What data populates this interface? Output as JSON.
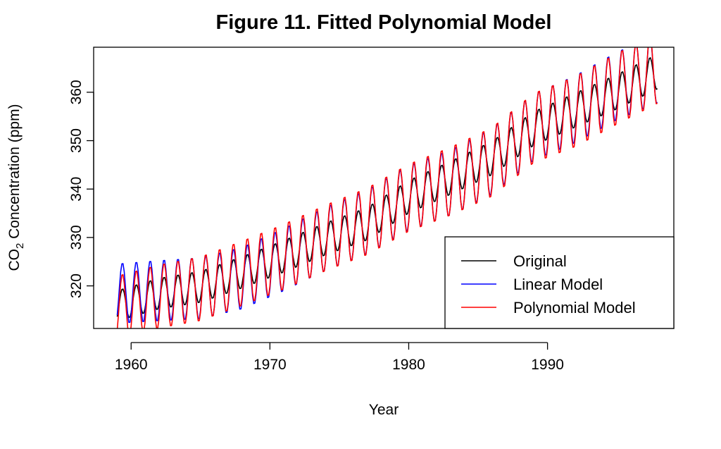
{
  "chart_data": {
    "type": "line",
    "title": "Figure 11. Fitted Polynomial Model",
    "xlabel": "Year",
    "ylabel": "CO2 Concentration (ppm)",
    "ylabel_parts": {
      "main": "CO",
      "sub": "2",
      "rest": " Concentration (ppm)"
    },
    "xlim": [
      1957.3,
      1999.1
    ],
    "ylim": [
      311.2,
      369.3
    ],
    "x_ticks": [
      1960,
      1970,
      1980,
      1990
    ],
    "x_tick_labels": [
      "1960",
      "1970",
      "1980",
      "1990"
    ],
    "y_ticks": [
      320,
      330,
      340,
      350,
      360
    ],
    "y_tick_labels": [
      "320",
      "330",
      "340",
      "350",
      "360"
    ],
    "x_range": [
      1959.0,
      1997.917
    ],
    "points_per_year": 12,
    "grid": false,
    "legend": {
      "position": "bottom-right"
    },
    "series": [
      {
        "name": "Original",
        "color": "#000000",
        "trend": {
          "years": [
            1959,
            1962,
            1965,
            1968,
            1971,
            1974,
            1977,
            1980,
            1983,
            1986,
            1989,
            1992,
            1995,
            1998
          ],
          "values": [
            315.9,
            318.4,
            319.8,
            322.8,
            326.1,
            329.7,
            332.8,
            338.4,
            342.3,
            346.4,
            352.5,
            356.3,
            360.1,
            364.4
          ]
        },
        "seasonal_amplitude": 3.2,
        "peak_month": 5
      },
      {
        "name": "Linear Model",
        "color": "#0000ff",
        "trend": {
          "years": [
            1959,
            1962,
            1965,
            1968,
            1971,
            1974,
            1977,
            1980,
            1983,
            1986,
            1989,
            1992,
            1995,
            1998
          ],
          "values": [
            318.4,
            319.0,
            319.5,
            321.6,
            325.4,
            329.7,
            333.2,
            338.2,
            341.3,
            345.7,
            352.8,
            356.5,
            361.3,
            365.0
          ]
        },
        "seasonal_amplitude": 6.3,
        "peak_month": 5
      },
      {
        "name": "Polynomial Model",
        "color": "#ff0000",
        "trend": {
          "years": [
            1959,
            1962,
            1965,
            1968,
            1971,
            1974,
            1977,
            1980,
            1983,
            1986,
            1989,
            1992,
            1995,
            1998
          ],
          "values": [
            315.6,
            317.8,
            319.4,
            322.6,
            326.0,
            329.9,
            333.3,
            338.2,
            341.6,
            345.6,
            352.6,
            356.0,
            360.7,
            365.2
          ]
        },
        "seasonal_amplitude": 6.6,
        "peak_month": 5
      }
    ]
  }
}
